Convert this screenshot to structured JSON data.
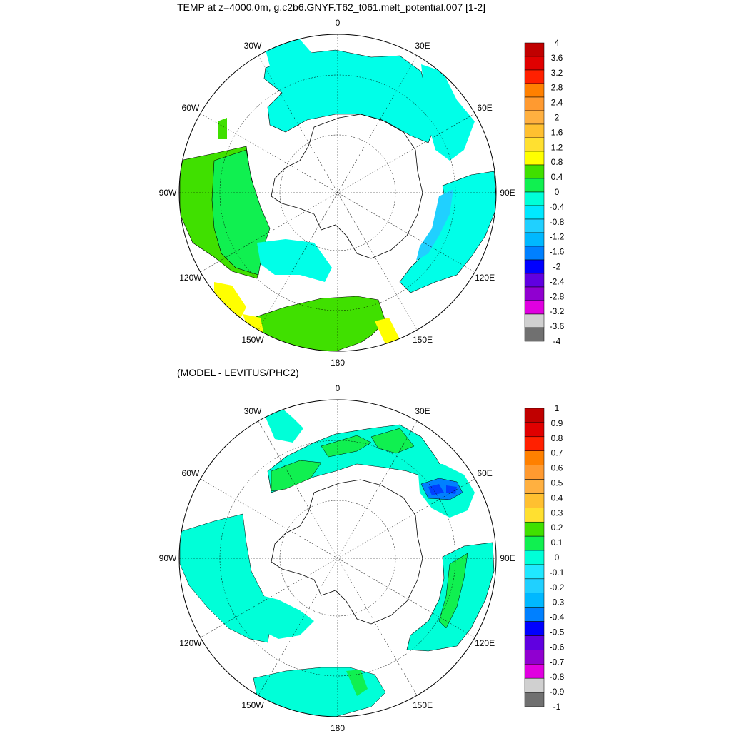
{
  "panels": [
    {
      "title": "TEMP at z=4000.0m, g.c2b6.GNYF.T62_t061.melt_potential.007 [1-2]",
      "longitude_labels": [
        "0",
        "30E",
        "60E",
        "90E",
        "120E",
        "150E",
        "180",
        "150W",
        "120W",
        "90W",
        "60W",
        "30W"
      ],
      "colorbar": {
        "labels": [
          "4",
          "3.6",
          "3.2",
          "2.8",
          "2.4",
          "2",
          "1.6",
          "1.2",
          "0.8",
          "0.4",
          "0",
          "-0.4",
          "-0.8",
          "-1.2",
          "-1.6",
          "-2",
          "-2.4",
          "-2.8",
          "-3.2",
          "-3.6",
          "-4"
        ],
        "colors": [
          "#c00000",
          "#e00000",
          "#ff2000",
          "#ff8000",
          "#ff9a30",
          "#ffb040",
          "#ffc030",
          "#ffe030",
          "#ffff00",
          "#40e000",
          "#10f050",
          "#00ffd8",
          "#00e8ff",
          "#20d0ff",
          "#00b8ff",
          "#0080ff",
          "#0000ff",
          "#6000e0",
          "#9000d0",
          "#e000e0",
          "#d0d0d0",
          "#707070"
        ]
      }
    },
    {
      "title": "(MODEL - LEVITUS/PHC2)",
      "longitude_labels": [
        "0",
        "30E",
        "60E",
        "90E",
        "120E",
        "150E",
        "180",
        "150W",
        "120W",
        "90W",
        "60W",
        "30W"
      ],
      "colorbar": {
        "labels": [
          "1",
          "0.9",
          "0.8",
          "0.7",
          "0.6",
          "0.5",
          "0.4",
          "0.3",
          "0.2",
          "0.1",
          "0",
          "-0.1",
          "-0.2",
          "-0.3",
          "-0.4",
          "-0.5",
          "-0.6",
          "-0.7",
          "-0.8",
          "-0.9",
          "-1"
        ],
        "colors": [
          "#c00000",
          "#e00000",
          "#ff2000",
          "#ff8000",
          "#ff9a30",
          "#ffb040",
          "#ffc030",
          "#ffe030",
          "#40e000",
          "#10f050",
          "#00ffd8",
          "#20e8ff",
          "#20d0ff",
          "#00b8ff",
          "#0080ff",
          "#0000ff",
          "#6000e0",
          "#9000d0",
          "#e000e0",
          "#d0d0d0",
          "#707070"
        ]
      }
    }
  ]
}
